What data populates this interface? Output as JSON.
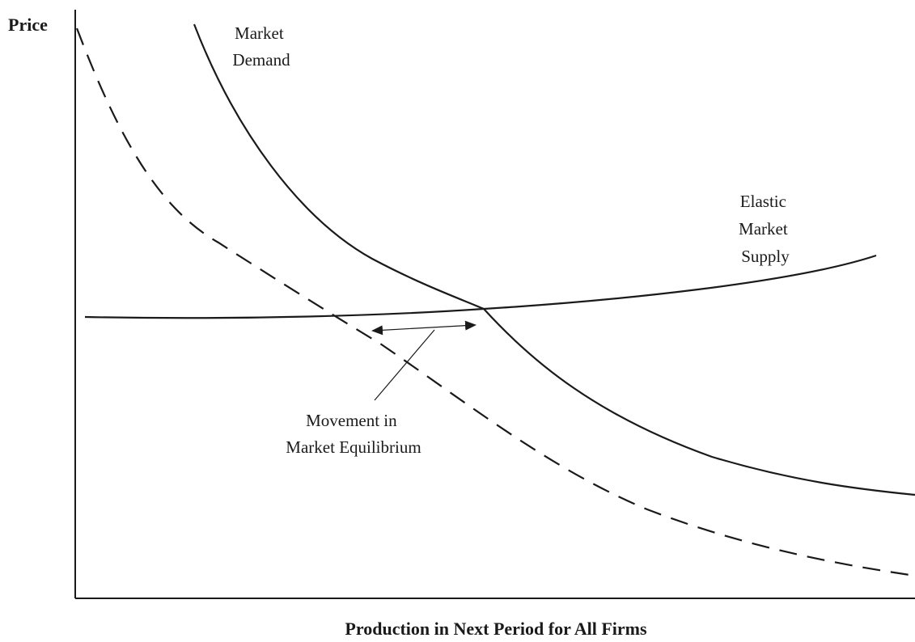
{
  "diagram": {
    "y_axis_label": "Price",
    "x_axis_label": "Production in Next Period for All Firms",
    "demand_label": [
      "Market",
      "Demand"
    ],
    "supply_label": [
      "Elastic",
      "Market",
      "Supply"
    ],
    "movement_label": [
      "Movement in",
      "Market Equilibrium"
    ],
    "curves": [
      {
        "id": "market-demand",
        "style": "solid"
      },
      {
        "id": "shifted-demand",
        "style": "dashed"
      },
      {
        "id": "elastic-market-supply",
        "style": "solid"
      }
    ]
  }
}
